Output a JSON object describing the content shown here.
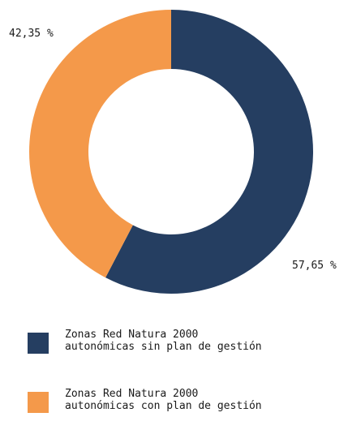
{
  "chart_data": {
    "type": "pie",
    "donut": true,
    "slices": [
      {
        "name": "Zonas Red Natura 2000\nautonómicas sin plan de gestión",
        "value": 57.65,
        "label": "57,65 %",
        "color": "#253E61"
      },
      {
        "name": "Zonas Red Natura 2000\nautonómicas con plan de gestión",
        "value": 42.35,
        "label": "42,35 %",
        "color": "#F4994A"
      }
    ],
    "legend_position": "bottom-left"
  }
}
